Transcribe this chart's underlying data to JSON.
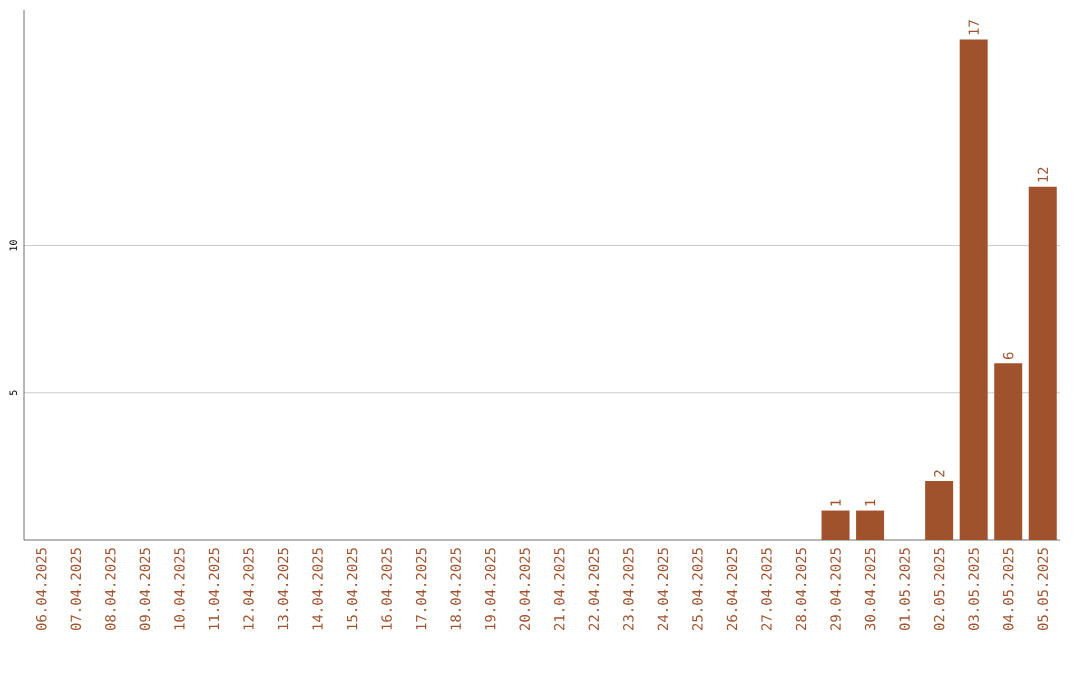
{
  "chart_data": {
    "type": "bar",
    "categories": [
      "06.04.2025",
      "07.04.2025",
      "08.04.2025",
      "09.04.2025",
      "10.04.2025",
      "11.04.2025",
      "12.04.2025",
      "13.04.2025",
      "14.04.2025",
      "15.04.2025",
      "16.04.2025",
      "17.04.2025",
      "18.04.2025",
      "19.04.2025",
      "20.04.2025",
      "21.04.2025",
      "22.04.2025",
      "23.04.2025",
      "24.04.2025",
      "25.04.2025",
      "26.04.2025",
      "27.04.2025",
      "28.04.2025",
      "29.04.2025",
      "30.04.2025",
      "01.05.2025",
      "02.05.2025",
      "03.05.2025",
      "04.05.2025",
      "05.05.2025"
    ],
    "values": [
      0,
      0,
      0,
      0,
      0,
      0,
      0,
      0,
      0,
      0,
      0,
      0,
      0,
      0,
      0,
      0,
      0,
      0,
      0,
      0,
      0,
      0,
      0,
      1,
      1,
      0,
      2,
      17,
      6,
      12
    ],
    "value_labels": [
      null,
      null,
      null,
      null,
      null,
      null,
      null,
      null,
      null,
      null,
      null,
      null,
      null,
      null,
      null,
      null,
      null,
      null,
      null,
      null,
      null,
      null,
      null,
      "1",
      "1",
      null,
      "2",
      "17",
      "6",
      "12"
    ],
    "color": "#a0522d",
    "ylim": [
      0,
      18
    ],
    "yticks": [
      5,
      10
    ],
    "grid": "y"
  }
}
